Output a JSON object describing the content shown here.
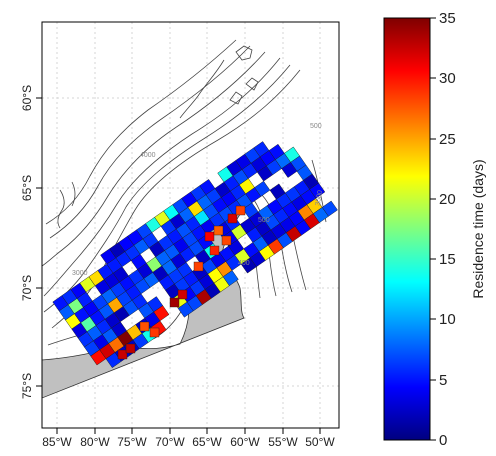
{
  "map": {
    "latitude_labels": [
      "60°S",
      "65°S",
      "70°S",
      "75°S"
    ],
    "longitude_labels": [
      "85°W",
      "80°W",
      "75°W",
      "70°W",
      "65°W",
      "60°W",
      "55°W",
      "50°W"
    ],
    "bathymetry_labels": [
      "4000",
      "500",
      "3500",
      "500",
      "400",
      "3000"
    ],
    "colors": {
      "land": "#c0c0c0",
      "contour": "#444444",
      "grid": "#d6d6d6",
      "frame": "#000000"
    }
  },
  "colorbar": {
    "title": "Residence time (days)",
    "min": 0,
    "max": 35,
    "tick_labels": [
      "0",
      "5",
      "10",
      "15",
      "20",
      "25",
      "30",
      "35"
    ],
    "colormap": [
      "#00007f",
      "#0000ff",
      "#007fff",
      "#00ffff",
      "#7fff7f",
      "#ffff00",
      "#ff7f00",
      "#ff0000",
      "#7f0000"
    ]
  }
}
